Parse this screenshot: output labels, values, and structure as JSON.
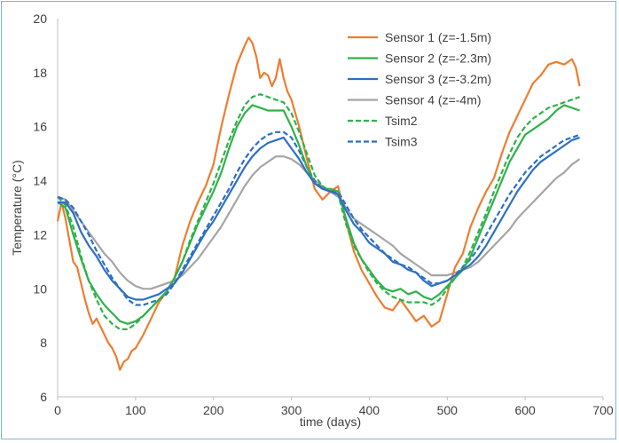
{
  "chart_data": {
    "type": "line",
    "title": "",
    "xlabel": "time (days)",
    "ylabel": "Temperature (°C)",
    "xlim": [
      0,
      700
    ],
    "ylim": [
      6,
      20
    ],
    "xticks": [
      0,
      100,
      200,
      300,
      400,
      500,
      600,
      700
    ],
    "yticks": [
      6,
      8,
      10,
      12,
      14,
      16,
      18,
      20
    ],
    "grid": false,
    "legend": "top-right",
    "series": [
      {
        "name": "Sensor 1 (z=-1.5m)",
        "color": "#ed7d31",
        "dash": "solid",
        "x": [
          0,
          5,
          10,
          15,
          20,
          25,
          30,
          35,
          40,
          45,
          50,
          55,
          60,
          65,
          70,
          75,
          80,
          85,
          90,
          95,
          100,
          110,
          120,
          130,
          140,
          150,
          160,
          170,
          180,
          190,
          200,
          210,
          220,
          230,
          240,
          245,
          250,
          255,
          260,
          265,
          270,
          275,
          280,
          285,
          290,
          295,
          300,
          310,
          320,
          330,
          340,
          350,
          360,
          370,
          380,
          390,
          400,
          410,
          420,
          430,
          440,
          450,
          460,
          470,
          480,
          490,
          500,
          510,
          520,
          530,
          540,
          550,
          560,
          570,
          580,
          590,
          600,
          610,
          620,
          630,
          640,
          650,
          660,
          665,
          670
        ],
        "y": [
          12.5,
          13.2,
          12.6,
          11.8,
          11.0,
          10.8,
          10.2,
          9.6,
          9.1,
          8.7,
          8.9,
          8.6,
          8.3,
          8.0,
          7.8,
          7.5,
          7.0,
          7.3,
          7.4,
          7.7,
          7.8,
          8.3,
          8.9,
          9.5,
          9.9,
          10.4,
          11.6,
          12.5,
          13.2,
          13.8,
          14.6,
          16.0,
          17.2,
          18.3,
          19.0,
          19.3,
          19.1,
          18.6,
          17.8,
          18.0,
          17.9,
          17.5,
          17.8,
          18.5,
          17.8,
          17.3,
          17.0,
          16.0,
          14.8,
          13.7,
          13.3,
          13.6,
          13.8,
          12.5,
          11.4,
          10.7,
          10.2,
          9.7,
          9.3,
          9.2,
          9.6,
          9.2,
          8.8,
          9.0,
          8.6,
          8.8,
          9.8,
          10.8,
          11.3,
          12.3,
          13.0,
          13.6,
          14.1,
          15.0,
          15.8,
          16.4,
          17.0,
          17.6,
          17.9,
          18.3,
          18.4,
          18.3,
          18.5,
          18.2,
          17.5
        ]
      },
      {
        "name": "Sensor 2 (z=-2.3m)",
        "color": "#2eb24a",
        "dash": "solid",
        "x": [
          0,
          10,
          20,
          30,
          40,
          50,
          60,
          70,
          80,
          90,
          100,
          110,
          120,
          130,
          140,
          150,
          160,
          170,
          180,
          190,
          200,
          210,
          220,
          230,
          240,
          250,
          260,
          270,
          280,
          290,
          300,
          310,
          320,
          330,
          340,
          350,
          360,
          370,
          380,
          390,
          400,
          410,
          420,
          430,
          440,
          450,
          460,
          470,
          480,
          490,
          500,
          510,
          520,
          530,
          540,
          550,
          560,
          570,
          580,
          590,
          600,
          610,
          620,
          630,
          640,
          650,
          660,
          670
        ],
        "y": [
          13.2,
          13.0,
          12.0,
          11.1,
          10.3,
          9.8,
          9.4,
          9.1,
          8.8,
          8.7,
          8.8,
          9.0,
          9.3,
          9.6,
          9.9,
          10.4,
          11.0,
          11.7,
          12.4,
          13.0,
          13.6,
          14.3,
          15.2,
          16.0,
          16.5,
          16.8,
          16.7,
          16.6,
          16.6,
          16.6,
          16.0,
          15.3,
          14.5,
          13.9,
          13.7,
          13.7,
          13.6,
          12.6,
          11.7,
          11.1,
          10.7,
          10.3,
          10.0,
          9.9,
          10.0,
          9.8,
          9.9,
          9.7,
          9.6,
          9.8,
          10.1,
          10.4,
          10.7,
          11.2,
          11.9,
          12.6,
          13.3,
          14.0,
          14.7,
          15.2,
          15.7,
          15.9,
          16.1,
          16.3,
          16.6,
          16.8,
          16.7,
          16.6
        ]
      },
      {
        "name": "Sensor 3 (z=-3.2m)",
        "color": "#2e6fc4",
        "dash": "solid",
        "x": [
          0,
          10,
          20,
          30,
          40,
          50,
          60,
          70,
          80,
          90,
          100,
          110,
          120,
          130,
          140,
          150,
          160,
          170,
          180,
          190,
          200,
          210,
          220,
          230,
          240,
          250,
          260,
          270,
          280,
          290,
          300,
          310,
          320,
          330,
          340,
          350,
          360,
          370,
          380,
          390,
          400,
          410,
          420,
          430,
          440,
          450,
          460,
          470,
          480,
          490,
          500,
          510,
          520,
          530,
          540,
          550,
          560,
          570,
          580,
          590,
          600,
          610,
          620,
          630,
          640,
          650,
          660,
          670
        ],
        "y": [
          13.2,
          13.2,
          12.8,
          12.1,
          11.6,
          11.2,
          10.7,
          10.3,
          10.0,
          9.7,
          9.6,
          9.6,
          9.7,
          9.8,
          10.0,
          10.2,
          10.6,
          11.1,
          11.6,
          12.1,
          12.5,
          13.0,
          13.5,
          14.0,
          14.5,
          14.9,
          15.2,
          15.4,
          15.5,
          15.6,
          15.2,
          14.8,
          14.3,
          13.9,
          13.7,
          13.6,
          13.5,
          12.9,
          12.4,
          12.1,
          11.7,
          11.5,
          11.3,
          11.0,
          10.9,
          10.7,
          10.6,
          10.3,
          10.1,
          10.2,
          10.3,
          10.5,
          10.7,
          10.9,
          11.2,
          11.6,
          12.1,
          12.6,
          13.1,
          13.6,
          14.0,
          14.4,
          14.7,
          14.9,
          15.1,
          15.3,
          15.5,
          15.6
        ]
      },
      {
        "name": "Sensor 4 (z=-4m)",
        "color": "#a5a5a5",
        "dash": "solid",
        "x": [
          0,
          10,
          20,
          30,
          40,
          50,
          60,
          70,
          80,
          90,
          100,
          110,
          120,
          130,
          140,
          150,
          160,
          170,
          180,
          190,
          200,
          210,
          220,
          230,
          240,
          250,
          260,
          270,
          280,
          290,
          300,
          310,
          320,
          330,
          340,
          350,
          360,
          370,
          380,
          390,
          400,
          410,
          420,
          430,
          440,
          450,
          460,
          470,
          480,
          490,
          500,
          510,
          520,
          530,
          540,
          550,
          560,
          570,
          580,
          590,
          600,
          610,
          620,
          630,
          640,
          650,
          660,
          670
        ],
        "y": [
          13.4,
          13.3,
          12.9,
          12.5,
          12.1,
          11.7,
          11.3,
          11.0,
          10.6,
          10.3,
          10.1,
          10.0,
          10.0,
          10.1,
          10.2,
          10.3,
          10.5,
          10.8,
          11.1,
          11.5,
          11.9,
          12.3,
          12.8,
          13.3,
          13.8,
          14.2,
          14.5,
          14.7,
          14.9,
          14.9,
          14.8,
          14.6,
          14.3,
          14.0,
          13.8,
          13.6,
          13.4,
          13.0,
          12.6,
          12.4,
          12.2,
          12.0,
          11.8,
          11.6,
          11.3,
          11.1,
          10.9,
          10.7,
          10.5,
          10.5,
          10.5,
          10.6,
          10.7,
          10.8,
          11.0,
          11.3,
          11.6,
          11.9,
          12.2,
          12.6,
          12.9,
          13.2,
          13.5,
          13.8,
          14.1,
          14.3,
          14.6,
          14.8
        ]
      },
      {
        "name": "Tsim2",
        "color": "#2eb24a",
        "dash": "dashed",
        "x": [
          0,
          10,
          20,
          30,
          40,
          50,
          60,
          70,
          80,
          90,
          100,
          110,
          120,
          130,
          140,
          150,
          160,
          170,
          180,
          190,
          200,
          210,
          220,
          230,
          240,
          250,
          260,
          270,
          280,
          290,
          300,
          310,
          320,
          330,
          340,
          350,
          360,
          370,
          380,
          390,
          400,
          410,
          420,
          430,
          440,
          450,
          460,
          470,
          480,
          490,
          500,
          510,
          520,
          530,
          540,
          550,
          560,
          570,
          580,
          590,
          600,
          610,
          620,
          630,
          640,
          650,
          660,
          670
        ],
        "y": [
          13.4,
          13.1,
          12.3,
          11.2,
          10.3,
          9.6,
          9.0,
          8.7,
          8.5,
          8.5,
          8.7,
          9.0,
          9.3,
          9.6,
          9.9,
          10.4,
          11.0,
          11.8,
          12.5,
          13.2,
          13.9,
          14.7,
          15.5,
          16.2,
          16.8,
          17.1,
          17.2,
          17.1,
          17.0,
          16.9,
          16.5,
          15.8,
          15.0,
          14.2,
          13.8,
          13.6,
          13.5,
          12.4,
          11.6,
          11.1,
          10.6,
          10.2,
          9.9,
          9.7,
          9.6,
          9.5,
          9.5,
          9.5,
          9.4,
          9.6,
          10.0,
          10.4,
          10.8,
          11.4,
          12.1,
          12.8,
          13.6,
          14.3,
          15.0,
          15.6,
          16.0,
          16.3,
          16.5,
          16.7,
          16.8,
          16.9,
          17.0,
          17.1
        ]
      },
      {
        "name": "Tsim3",
        "color": "#2e6fc4",
        "dash": "dashed",
        "x": [
          0,
          10,
          20,
          30,
          40,
          50,
          60,
          70,
          80,
          90,
          100,
          110,
          120,
          130,
          140,
          150,
          160,
          170,
          180,
          190,
          200,
          210,
          220,
          230,
          240,
          250,
          260,
          270,
          280,
          290,
          300,
          310,
          320,
          330,
          340,
          350,
          360,
          370,
          380,
          390,
          400,
          410,
          420,
          430,
          440,
          450,
          460,
          470,
          480,
          490,
          500,
          510,
          520,
          530,
          540,
          550,
          560,
          570,
          580,
          590,
          600,
          610,
          620,
          630,
          640,
          650,
          660,
          670
        ],
        "y": [
          13.4,
          13.3,
          13.0,
          12.5,
          12.0,
          11.4,
          10.9,
          10.4,
          10.0,
          9.6,
          9.4,
          9.4,
          9.5,
          9.6,
          9.8,
          10.2,
          10.7,
          11.2,
          11.7,
          12.2,
          12.7,
          13.2,
          13.7,
          14.3,
          14.8,
          15.2,
          15.5,
          15.7,
          15.8,
          15.8,
          15.6,
          15.1,
          14.5,
          14.0,
          13.7,
          13.6,
          13.6,
          13.1,
          12.6,
          12.2,
          11.9,
          11.6,
          11.3,
          11.1,
          10.9,
          10.8,
          10.6,
          10.4,
          10.2,
          10.2,
          10.3,
          10.5,
          10.8,
          11.1,
          11.5,
          12.0,
          12.5,
          13.0,
          13.5,
          13.9,
          14.3,
          14.6,
          14.9,
          15.1,
          15.3,
          15.5,
          15.6,
          15.7
        ]
      }
    ]
  }
}
